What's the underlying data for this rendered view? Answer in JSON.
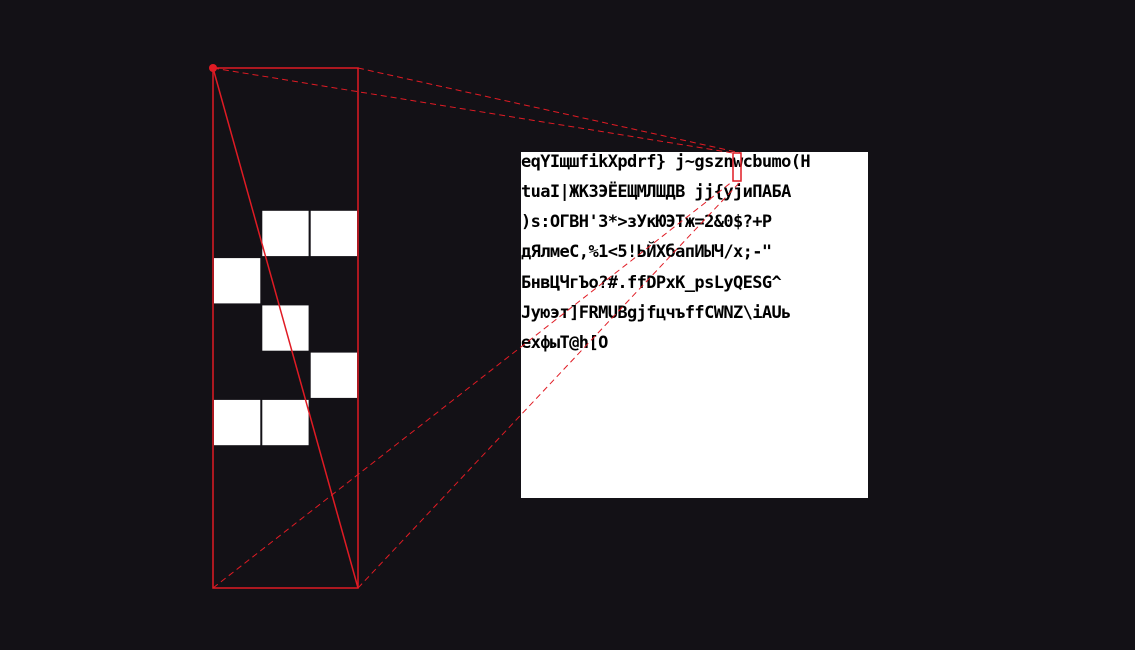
{
  "colors": {
    "background": "#131116",
    "atlas": "#ffffff",
    "glyph_ink": "#000000",
    "zoom_glyph": "#ffffff",
    "highlight": "#e01b24"
  },
  "atlas": {
    "lines": [
      "eqYIщшfikXpdrf} j~gsznwcbumo(H",
      "tuaI|ЖKЗЭЁЕЩМЛШДВ jj{yjиПАБА",
      ")s:OГBH'З*>зУкЮЭТж=2&0$?+P",
      "дЯлмеС,%1<5!ЬЙХбапИЫЧ/x;-\"",
      "БнвЦЧгЪо?#.ffDPxK_psLyQESG^",
      "Jуюэт]FRMUBgjfцчъffCWNZ\\iAUь",
      "ехфыТ@h[O"
    ]
  },
  "zoom": {
    "grid_cols": 3,
    "grid_rows": 11,
    "filled_cells": [
      [
        1,
        3
      ],
      [
        2,
        3
      ],
      [
        0,
        4
      ],
      [
        1,
        5
      ],
      [
        2,
        6
      ],
      [
        0,
        7
      ],
      [
        1,
        7
      ]
    ]
  }
}
